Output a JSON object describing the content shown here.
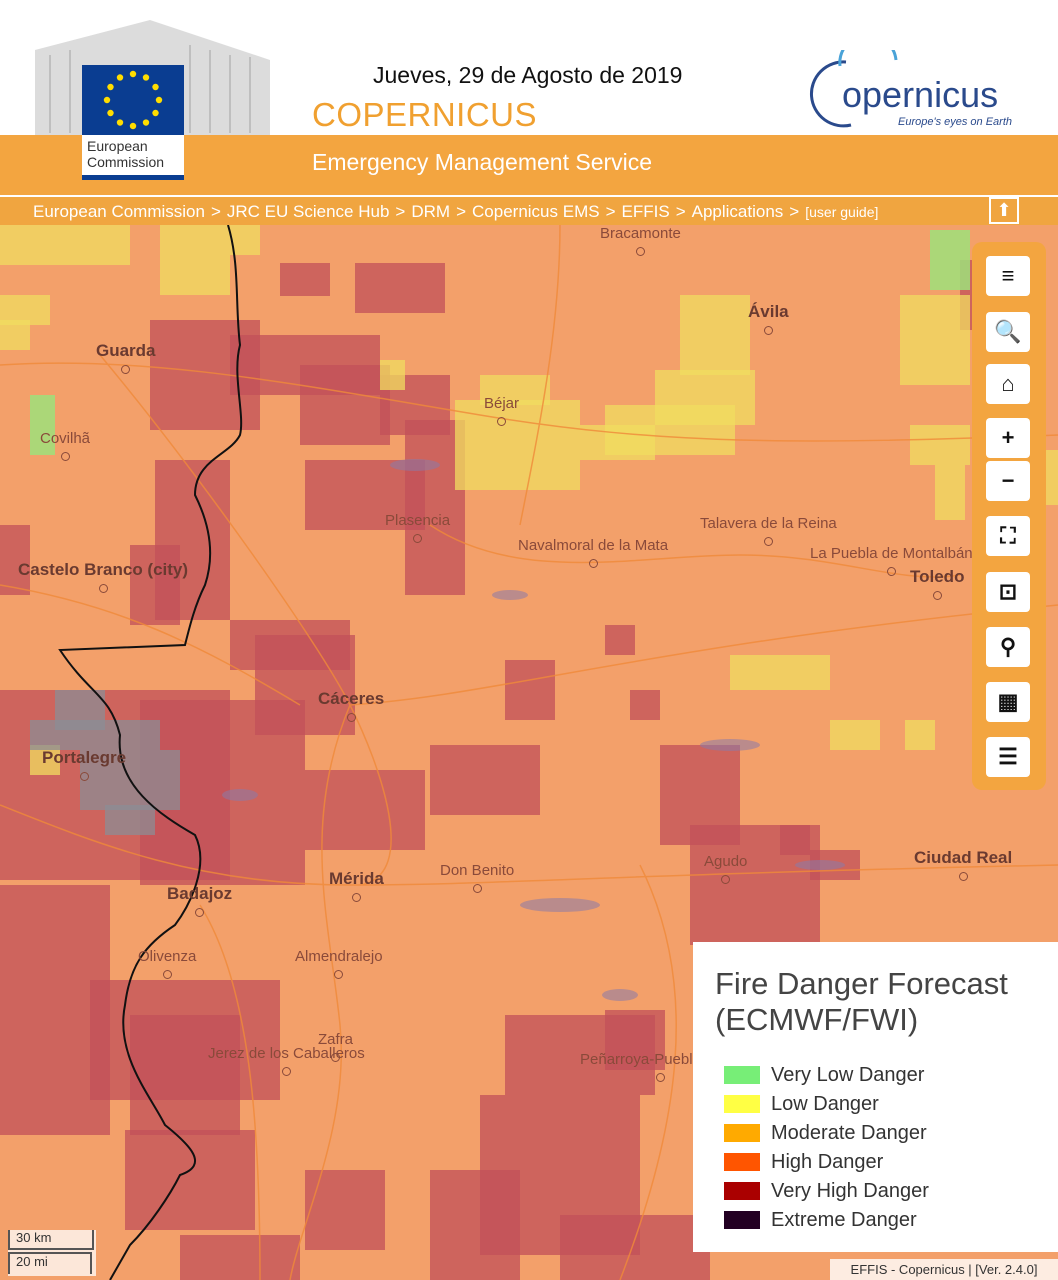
{
  "header": {
    "commission_logo_text": [
      "European",
      "Commission"
    ],
    "date": "Jueves, 29 de Agosto de 2019",
    "title": "COPERNICUS",
    "service": "Emergency Management Service",
    "copernicus_logo": {
      "word": "opernicus",
      "tagline": "Europe's eyes on Earth"
    }
  },
  "breadcrumb": {
    "items": [
      "European Commission",
      "JRC EU Science Hub",
      "DRM",
      "Copernicus EMS",
      "EFFIS",
      "Applications"
    ],
    "guide": "[user guide]",
    "separator": ">"
  },
  "map": {
    "cities": [
      {
        "name": "Bracamonte"
      },
      {
        "name": "Ávila",
        "major": true
      },
      {
        "name": "Guarda",
        "major": true
      },
      {
        "name": "Béjar"
      },
      {
        "name": "Covilhã"
      },
      {
        "name": "Plasencia"
      },
      {
        "name": "Talavera de la Reina"
      },
      {
        "name": "Navalmoral de la Mata"
      },
      {
        "name": "La Puebla de Montalbán"
      },
      {
        "name": "Toledo",
        "major": true
      },
      {
        "name": "Castelo Branco (city)",
        "major": true
      },
      {
        "name": "Cáceres",
        "major": true
      },
      {
        "name": "Portalegre",
        "major": true
      },
      {
        "name": "Mérida",
        "major": true
      },
      {
        "name": "Don Benito"
      },
      {
        "name": "Agudo"
      },
      {
        "name": "Ciudad Real",
        "major": true
      },
      {
        "name": "Badajoz",
        "major": true
      },
      {
        "name": "Olivenza"
      },
      {
        "name": "Almendralejo"
      },
      {
        "name": "Zafra"
      },
      {
        "name": "Jerez de los Caballeros"
      },
      {
        "name": "Peñarroya-Pueblonuevo"
      }
    ]
  },
  "toolbar": [
    {
      "icon": "menu-icon",
      "glyph": "≡"
    },
    {
      "icon": "search-icon",
      "glyph": "🔍"
    },
    {
      "icon": "home-icon",
      "glyph": "⌂"
    },
    {
      "icon": "zoom-in-icon",
      "glyph": "+"
    },
    {
      "icon": "zoom-out-icon",
      "glyph": "−"
    },
    {
      "icon": "fullscreen-icon",
      "glyph": "⛶"
    },
    {
      "icon": "fit-extent-icon",
      "glyph": "⊡"
    },
    {
      "icon": "location-pin-icon",
      "glyph": "⚲"
    },
    {
      "icon": "layers-grid-icon",
      "glyph": "▦"
    },
    {
      "icon": "legend-list-icon",
      "glyph": "☰"
    }
  ],
  "legend": {
    "title": [
      "Fire Danger Forecast",
      "(ECMWF/FWI)"
    ],
    "items": [
      {
        "label": "Very Low Danger",
        "color": "#77ee77"
      },
      {
        "label": "Low Danger",
        "color": "#ffff44"
      },
      {
        "label": "Moderate Danger",
        "color": "#ffaa00"
      },
      {
        "label": "High Danger",
        "color": "#ff5500"
      },
      {
        "label": "Very High Danger",
        "color": "#aa0000"
      },
      {
        "label": "Extreme Danger",
        "color": "#220022"
      }
    ]
  },
  "scale": {
    "km": "30 km",
    "mi": "20 mi"
  },
  "attribution": "EFFIS - Copernicus | [Ver. 2.4.0]"
}
